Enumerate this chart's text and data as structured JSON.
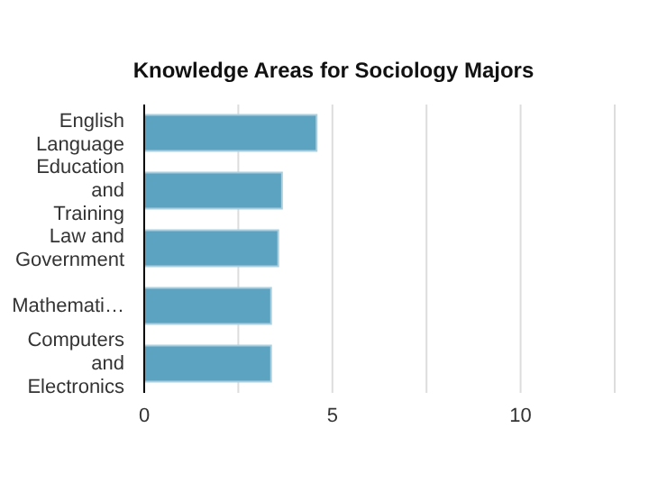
{
  "chart_data": {
    "type": "bar",
    "orientation": "horizontal",
    "title": "Knowledge Areas for Sociology Majors",
    "categories": [
      "English Language",
      "Education and Training",
      "Law and Government",
      "Mathemati…",
      "Computers and Electronics"
    ],
    "values": [
      4.58,
      3.66,
      3.56,
      3.37,
      3.37
    ],
    "color": "#5ba3c0",
    "xlim": [
      0,
      12.5
    ],
    "xticks": [
      0,
      {
        "value": 2.5,
        "label": null
      },
      5,
      {
        "value": 7.5,
        "label": null
      },
      10
    ],
    "grid": "x"
  }
}
